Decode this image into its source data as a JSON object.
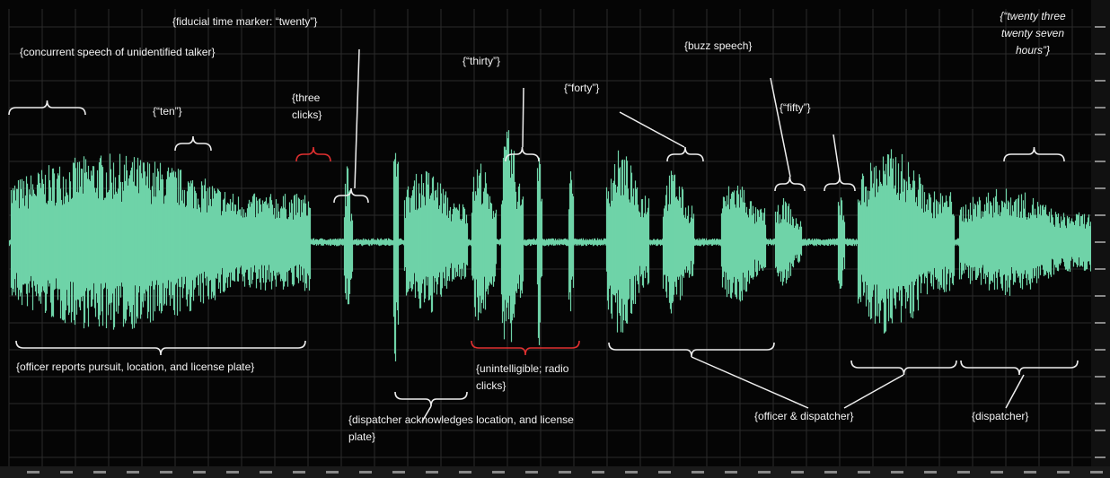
{
  "annotations": [
    {
      "lines": [
        "{concurrent speech of unidentified talker}"
      ]
    },
    {
      "lines": [
        "{fiducial time marker: “twenty”}"
      ]
    },
    {
      "lines": [
        "{“ten”}"
      ]
    },
    {
      "lines": [
        "{three",
        "clicks}"
      ]
    },
    {
      "lines": [
        "{“thirty”}"
      ]
    },
    {
      "lines": [
        "{“forty”}"
      ]
    },
    {
      "lines": [
        "{buzz speech}"
      ]
    },
    {
      "lines": [
        "{“fifty”}"
      ]
    },
    {
      "lines": [
        "{“twenty three",
        "twenty seven",
        "hours”}"
      ]
    },
    {
      "lines": [
        "{officer reports pursuit, location, and license plate}"
      ]
    },
    {
      "lines": [
        "{unintelligible; radio",
        "clicks}"
      ]
    },
    {
      "lines": [
        "{dispatcher acknowledges location, and license",
        "plate}"
      ]
    },
    {
      "lines": [
        "{officer & dispatcher}"
      ]
    },
    {
      "lines": [
        "{dispatcher}"
      ]
    }
  ]
}
